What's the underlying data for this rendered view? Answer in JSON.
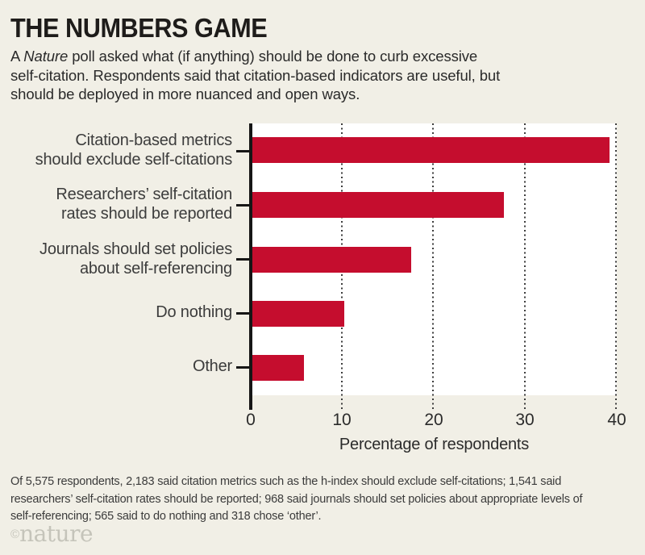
{
  "header": {
    "title": "THE NUMBERS GAME",
    "subtitle_line1_prefix": "A ",
    "subtitle_line1_italic": "Nature",
    "subtitle_line1_rest": " poll asked what (if anything) should be done to curb excessive",
    "subtitle_line2": "self-citation. Respondents said that citation-based indicators are useful, but",
    "subtitle_line3": "should be deployed in more nuanced and open ways."
  },
  "chart_data": {
    "type": "bar",
    "orientation": "horizontal",
    "title": "THE NUMBERS GAME",
    "categories": [
      "Citation-based metrics should exclude self-citations",
      "Researchers’ self-citation rates should be reported",
      "Journals should set policies about self-referencing",
      "Do nothing",
      "Other"
    ],
    "values": [
      39.2,
      27.6,
      17.4,
      10.1,
      5.7
    ],
    "respondent_counts": [
      2183,
      1541,
      968,
      565,
      318
    ],
    "total_respondents": 5575,
    "xlabel": "Percentage of respondents",
    "xlim": [
      0,
      40
    ],
    "xticks": [
      0,
      10,
      20,
      30,
      40
    ],
    "grid": "vertical-dotted",
    "legend": "none",
    "bar_color": "#c50d2e",
    "plot_background": "#ffffff",
    "page_background": "#f1efe6"
  },
  "chart": {
    "rows": [
      {
        "lines": [
          "Citation-based metrics",
          "should exclude self-citations"
        ]
      },
      {
        "lines": [
          "Researchers’ self-citation",
          "rates should be reported"
        ]
      },
      {
        "lines": [
          "Journals should set policies",
          "about self-referencing"
        ]
      },
      {
        "lines": [
          "Do nothing"
        ]
      },
      {
        "lines": [
          "Other"
        ]
      }
    ],
    "xticks": [
      "0",
      "10",
      "20",
      "30",
      "40"
    ],
    "xlabel": "Percentage of respondents"
  },
  "footnote": {
    "lines": [
      "Of 5,575 respondents, 2,183 said citation metrics such as the h-index should exclude self-citations; 1,541 said",
      "researchers’ self-citation rates should be reported; 968 said journals should set policies about appropriate levels of",
      "self-referencing; 565 said to do nothing and 318 chose ‘other’."
    ]
  },
  "branding": {
    "copyright": "©",
    "logo": "nature"
  }
}
